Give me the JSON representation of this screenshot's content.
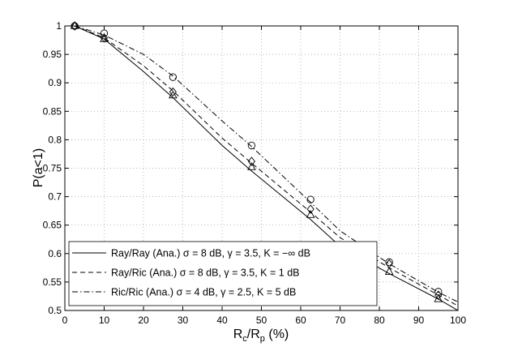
{
  "chart_data": {
    "type": "line",
    "title": "",
    "xlabel": "R_c/R_p (%)",
    "ylabel": "P(a<1)",
    "xlim": [
      0,
      100
    ],
    "ylim": [
      0.5,
      1
    ],
    "xticks": [
      0,
      10,
      20,
      30,
      40,
      50,
      60,
      70,
      80,
      90,
      100
    ],
    "yticks": [
      0.5,
      0.55,
      0.6,
      0.65,
      0.7,
      0.75,
      0.8,
      0.85,
      0.9,
      0.95,
      1
    ],
    "xtick_labels": [
      "0",
      "10",
      "20",
      "30",
      "40",
      "50",
      "60",
      "70",
      "80",
      "90",
      "100"
    ],
    "ytick_labels": [
      "0.5",
      "0.55",
      "0.6",
      "0.65",
      "0.7",
      "0.75",
      "0.8",
      "0.85",
      "0.9",
      "0.95",
      "1"
    ],
    "grid": true,
    "legend_position": "bottom-left",
    "series": [
      {
        "name": "Ray/Ray (Ana.) σ = 8 dB, γ = 3.5, K = −∞ dB",
        "line_style": "solid",
        "marker": "triangle",
        "x": [
          2.5,
          10,
          20,
          27.5,
          40,
          47.5,
          62.5,
          70,
          82.5,
          95,
          100
        ],
        "y": [
          1.0,
          0.977,
          0.92,
          0.874,
          0.79,
          0.745,
          0.66,
          0.613,
          0.565,
          0.52,
          0.5
        ],
        "marker_x": [
          2.5,
          10,
          27.5,
          47.5,
          62.5,
          82.5,
          95
        ],
        "marker_y": [
          1.0,
          0.977,
          0.878,
          0.752,
          0.668,
          0.568,
          0.52
        ]
      },
      {
        "name": "Ray/Ric (Ana.) σ = 8 dB, γ = 3.5, K = 1 dB",
        "line_style": "dashed",
        "marker": "diamond",
        "x": [
          2.5,
          10,
          20,
          27.5,
          40,
          47.5,
          62.5,
          70,
          82.5,
          95,
          100
        ],
        "y": [
          1.0,
          0.979,
          0.93,
          0.886,
          0.803,
          0.759,
          0.673,
          0.628,
          0.575,
          0.527,
          0.508
        ],
        "marker_x": [
          2.5,
          10,
          27.5,
          47.5,
          62.5,
          82.5,
          95
        ],
        "marker_y": [
          1.0,
          0.979,
          0.884,
          0.762,
          0.678,
          0.582,
          0.527
        ]
      },
      {
        "name": "Ric/Ric (Ana.) σ = 4 dB, γ = 2.5, K = 5 dB",
        "line_style": "dashdot",
        "marker": "circle",
        "x": [
          2.5,
          10,
          20,
          27.5,
          40,
          47.5,
          62.5,
          70,
          82.5,
          95,
          100
        ],
        "y": [
          1.0,
          0.984,
          0.95,
          0.912,
          0.833,
          0.788,
          0.69,
          0.64,
          0.582,
          0.532,
          0.515
        ],
        "marker_x": [
          2.5,
          10,
          27.5,
          47.5,
          62.5,
          82.5,
          95
        ],
        "marker_y": [
          1.0,
          0.987,
          0.91,
          0.79,
          0.695,
          0.585,
          0.533
        ]
      }
    ]
  }
}
